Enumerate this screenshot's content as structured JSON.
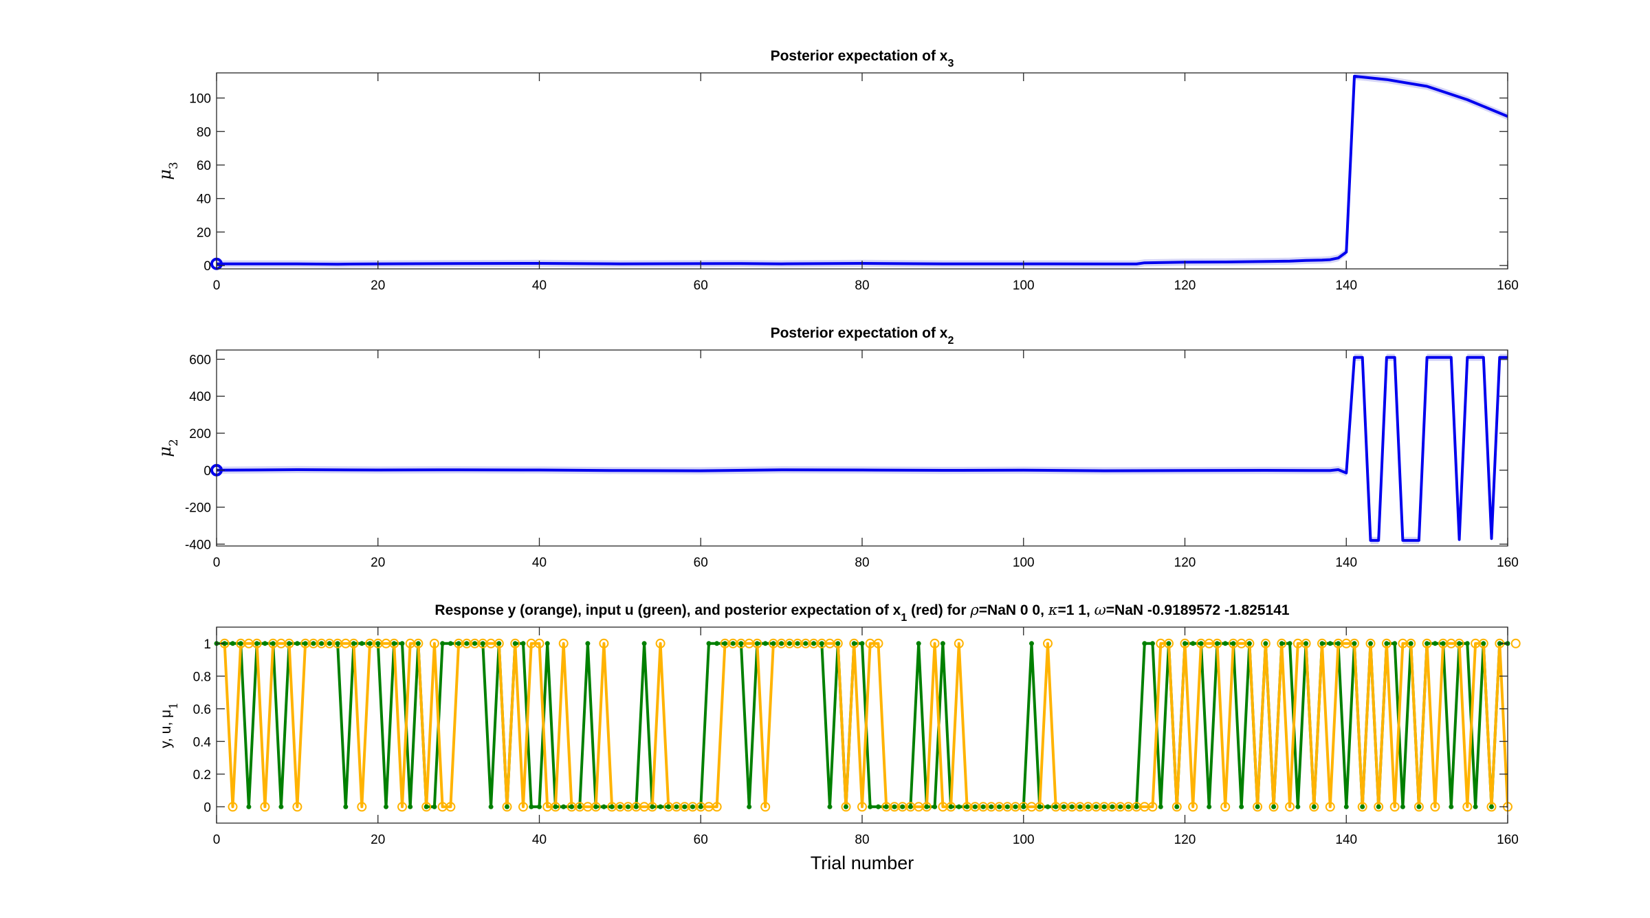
{
  "chart_data": [
    {
      "type": "line",
      "title": "Posterior expectation of x",
      "title_sub": "3",
      "xlabel": "",
      "ylabel": "μ",
      "ylabel_sub": "3",
      "xlim": [
        0,
        160
      ],
      "ylim": [
        -2,
        115
      ],
      "xticks": [
        0,
        20,
        40,
        60,
        80,
        100,
        120,
        140,
        160
      ],
      "yticks": [
        0,
        20,
        40,
        60,
        80,
        100
      ],
      "grid": false,
      "colors": {
        "line": "#0000ee",
        "band": "#b4b4f0"
      },
      "series": [
        {
          "start_marker": true,
          "x": [
            0,
            10,
            15,
            20,
            30,
            40,
            50,
            60,
            65,
            70,
            80,
            90,
            100,
            110,
            114,
            115,
            120,
            125,
            130,
            133,
            135,
            137,
            138,
            139,
            140,
            141,
            145,
            150,
            155,
            160
          ],
          "y": [
            1,
            1,
            0.8,
            1,
            1.2,
            1.3,
            1,
            1.1,
            1.2,
            1,
            1.3,
            1,
            1,
            0.9,
            0.9,
            1.6,
            2,
            2.1,
            2.4,
            2.6,
            3,
            3.2,
            3.5,
            4.5,
            8,
            113,
            111,
            107,
            99,
            89
          ]
        }
      ]
    },
    {
      "type": "line",
      "title": "Posterior expectation of x",
      "title_sub": "2",
      "xlabel": "",
      "ylabel": "μ",
      "ylabel_sub": "2",
      "xlim": [
        0,
        160
      ],
      "ylim": [
        -410,
        650
      ],
      "xticks": [
        0,
        20,
        40,
        60,
        80,
        100,
        120,
        140,
        160
      ],
      "yticks": [
        -400,
        -200,
        0,
        200,
        400,
        600
      ],
      "grid": false,
      "colors": {
        "line": "#0000ee",
        "band": "#b4b4f0"
      },
      "series": [
        {
          "start_marker": true,
          "x": [
            0,
            10,
            20,
            30,
            40,
            50,
            60,
            70,
            80,
            90,
            100,
            110,
            120,
            130,
            138,
            139,
            140,
            141,
            142,
            143,
            144,
            145,
            146,
            147,
            148,
            149,
            150,
            151,
            152,
            153,
            154,
            155,
            156,
            157,
            158,
            159,
            160
          ],
          "y": [
            0,
            3,
            1,
            2,
            1,
            -2,
            -3,
            2,
            1,
            -1,
            0,
            -3,
            -2,
            -1,
            -2,
            3,
            -15,
            610,
            610,
            -380,
            -380,
            610,
            610,
            -380,
            -380,
            -380,
            610,
            610,
            610,
            610,
            -375,
            610,
            610,
            610,
            -370,
            610,
            610
          ]
        }
      ]
    },
    {
      "type": "line",
      "title": "Response y (orange), input u (green), and posterior expectation of x",
      "title_sub": "1",
      "title_tail": " (red) for ",
      "title_params": [
        {
          "sym": "ρ",
          "text": "=NaN    0    0, "
        },
        {
          "sym": "κ",
          "text": "=1   1, "
        },
        {
          "sym": "ω",
          "text": "=NaN    -0.9189572     -1.825141"
        }
      ],
      "xlabel": "Trial number",
      "ylabel": "y, u, μ",
      "ylabel_sub": "1",
      "xlim": [
        0,
        160
      ],
      "ylim": [
        -0.1,
        1.1
      ],
      "xticks": [
        0,
        20,
        40,
        60,
        80,
        100,
        120,
        140,
        160
      ],
      "yticks": [
        0,
        0.2,
        0.4,
        0.6,
        0.8,
        1
      ],
      "grid": false,
      "colors": {
        "u": "#008000",
        "y": "#ffb300"
      },
      "series": [
        {
          "name": "u",
          "values": [
            1,
            1,
            1,
            1,
            0,
            1,
            1,
            1,
            0,
            1,
            1,
            1,
            1,
            1,
            1,
            1,
            0,
            1,
            1,
            1,
            1,
            0,
            1,
            1,
            0,
            1,
            0,
            0,
            1,
            1,
            1,
            1,
            1,
            1,
            0,
            1,
            0,
            1,
            1,
            0,
            0,
            1,
            0,
            0,
            0,
            0,
            1,
            0,
            0,
            0,
            0,
            0,
            0,
            1,
            0,
            0,
            0,
            0,
            0,
            0,
            0,
            1,
            1,
            1,
            1,
            1,
            0,
            1,
            1,
            1,
            1,
            1,
            1,
            1,
            1,
            1,
            0,
            1,
            0,
            1,
            1,
            0,
            0,
            0,
            0,
            0,
            0,
            1,
            0,
            0,
            1,
            0,
            0,
            0,
            0,
            0,
            0,
            0,
            0,
            0,
            0,
            1,
            0,
            0,
            0,
            0,
            0,
            0,
            0,
            0,
            0,
            0,
            0,
            0,
            0,
            1,
            1,
            0,
            1,
            0,
            1,
            1,
            1,
            0,
            1,
            1,
            1,
            0,
            1,
            0,
            1,
            0,
            1,
            1,
            0,
            1,
            0,
            1,
            1,
            1,
            0,
            1,
            0,
            1,
            0,
            1,
            1,
            0,
            1,
            0,
            1,
            1,
            1,
            0,
            1,
            1,
            0,
            1,
            0,
            1,
            1
          ]
        },
        {
          "name": "y",
          "values": [
            1,
            0,
            1,
            1,
            1,
            0,
            1,
            1,
            1,
            0,
            1,
            1,
            1,
            1,
            1,
            1,
            1,
            0,
            1,
            1,
            1,
            1,
            0,
            1,
            1,
            0,
            1,
            0,
            0,
            1,
            1,
            1,
            1,
            1,
            1,
            0,
            1,
            0,
            1,
            1,
            0,
            0,
            1,
            0,
            0,
            0,
            0,
            1,
            0,
            0,
            0,
            0,
            0,
            0,
            1,
            0,
            0,
            0,
            0,
            0,
            0,
            0,
            1,
            1,
            1,
            1,
            1,
            0,
            1,
            1,
            1,
            1,
            1,
            1,
            1,
            1,
            1,
            0,
            1,
            0,
            1,
            1,
            0,
            0,
            0,
            0,
            0,
            0,
            1,
            0,
            0,
            1,
            0,
            0,
            0,
            0,
            0,
            0,
            0,
            0,
            0,
            0,
            1,
            0,
            0,
            0,
            0,
            0,
            0,
            0,
            0,
            0,
            0,
            0,
            0,
            0,
            1,
            1,
            0,
            1,
            0,
            1,
            1,
            1,
            0,
            1,
            1,
            1,
            0,
            1,
            0,
            1,
            0,
            1,
            1,
            0,
            1,
            0,
            1,
            1,
            1,
            0,
            1,
            0,
            1,
            0,
            1,
            1,
            0,
            1,
            0,
            1,
            1,
            1,
            0,
            1,
            1,
            0,
            1,
            0,
            1
          ]
        }
      ]
    }
  ]
}
